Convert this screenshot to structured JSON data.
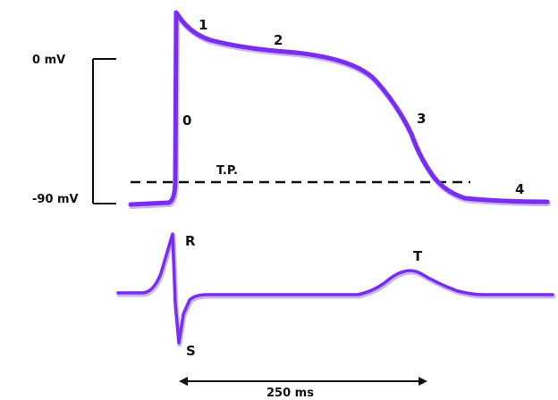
{
  "colors": {
    "trace": "#7a2cf0",
    "trace_shadow": "#c9b6f5",
    "ink": "#111111"
  },
  "action_potential": {
    "phase_labels": [
      "0",
      "1",
      "2",
      "3",
      "4"
    ],
    "threshold_label": "T.P.",
    "voltage_top_label": "0 mV",
    "voltage_bottom_label": "-90 mV"
  },
  "ecg": {
    "r_label": "R",
    "s_label": "S",
    "t_label": "T"
  },
  "time_scale": {
    "label": "250 ms"
  }
}
